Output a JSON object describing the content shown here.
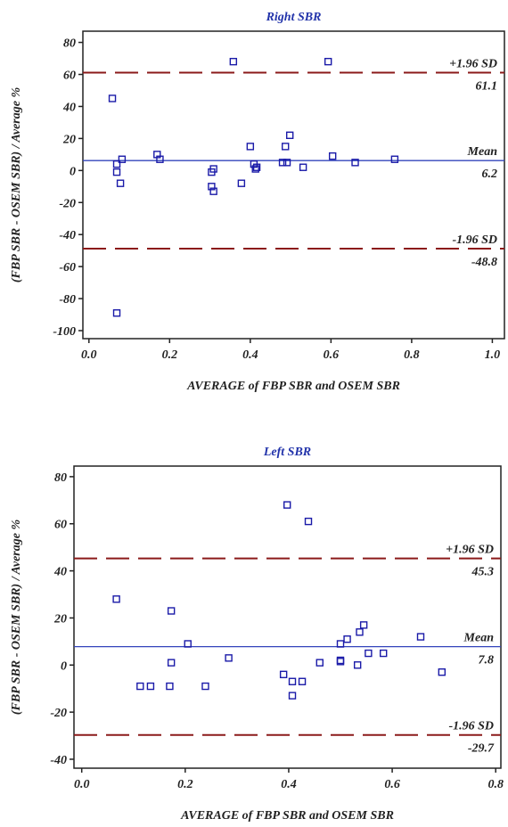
{
  "chart_data": [
    {
      "type": "scatter",
      "title": "Right SBR",
      "x_label": "AVERAGE of FBP SBR and OSEM SBR",
      "y_label": "(FBP SBR - OSEM SBR) / Average %",
      "color": "#1a1aa8",
      "x": [
        0.058,
        0.069,
        0.069,
        0.078,
        0.082,
        0.069,
        0.169,
        0.176,
        0.304,
        0.309,
        0.304,
        0.309,
        0.358,
        0.378,
        0.4,
        0.409,
        0.416,
        0.413,
        0.48,
        0.487,
        0.491,
        0.498,
        0.531,
        0.593,
        0.604,
        0.66,
        0.758
      ],
      "values": [
        45,
        4,
        -1,
        -8,
        7,
        -89,
        10,
        7,
        -1,
        1,
        -10,
        -13,
        68,
        -8,
        15,
        4,
        2,
        1,
        5,
        15,
        5,
        22,
        2,
        68,
        9,
        5,
        7
      ],
      "lines": [
        {
          "label": "+1.96 SD",
          "value": 61.1,
          "color": "#8b1a1a",
          "style": "dashed"
        },
        {
          "label": "Mean",
          "value": 6.2,
          "color": "#3344bb",
          "style": "solid"
        },
        {
          "label": "-1.96 SD",
          "value": -48.8,
          "color": "#8b1a1a",
          "style": "dashed"
        }
      ],
      "xlim": [
        -0.015,
        1.03
      ],
      "ylim": [
        -105,
        87
      ],
      "xticks": [
        {
          "value": 0,
          "label": "0.0"
        },
        {
          "value": 0.2,
          "label": "0.2"
        },
        {
          "value": 0.4,
          "label": "0.4"
        },
        {
          "value": 0.6,
          "label": "0.6"
        },
        {
          "value": 0.8,
          "label": "0.8"
        },
        {
          "value": 1,
          "label": "1.0"
        }
      ],
      "yticks": [
        -100,
        -80,
        -60,
        -40,
        -20,
        0,
        20,
        40,
        60,
        80
      ]
    },
    {
      "type": "scatter",
      "title": "Left SBR",
      "x_label": "AVERAGE of FBP SBR and OSEM SBR",
      "y_label": "(FBP SBR - OSEM SBR) / Average %",
      "color": "#1a1aa8",
      "x": [
        0.067,
        0.173,
        0.205,
        0.173,
        0.17,
        0.113,
        0.133,
        0.239,
        0.284,
        0.397,
        0.438,
        0.39,
        0.407,
        0.407,
        0.426,
        0.46,
        0.5,
        0.5,
        0.5,
        0.513,
        0.533,
        0.537,
        0.545,
        0.554,
        0.583,
        0.655,
        0.696
      ],
      "values": [
        28,
        23,
        9,
        1,
        -9,
        -9,
        -9,
        -9,
        3,
        68,
        61,
        -4,
        -7,
        -13,
        -7,
        1,
        9,
        2,
        1.5,
        11,
        0,
        14,
        17,
        5,
        5,
        12,
        -3
      ],
      "lines": [
        {
          "label": "+1.96 SD",
          "value": 45.3,
          "color": "#8b1a1a",
          "style": "dashed"
        },
        {
          "label": "Mean",
          "value": 7.8,
          "color": "#3344bb",
          "style": "solid"
        },
        {
          "label": "-1.96 SD",
          "value": -29.7,
          "color": "#8b1a1a",
          "style": "dashed"
        }
      ],
      "xlim": [
        -0.015,
        0.81
      ],
      "ylim": [
        -43.8,
        84.5
      ],
      "xticks": [
        {
          "value": 0,
          "label": "0.0"
        },
        {
          "value": 0.2,
          "label": "0.2"
        },
        {
          "value": 0.4,
          "label": "0.4"
        },
        {
          "value": 0.6,
          "label": "0.6"
        },
        {
          "value": 0.8,
          "label": "0.8"
        }
      ],
      "yticks": [
        -40,
        -20,
        0,
        20,
        40,
        60,
        80
      ]
    }
  ]
}
